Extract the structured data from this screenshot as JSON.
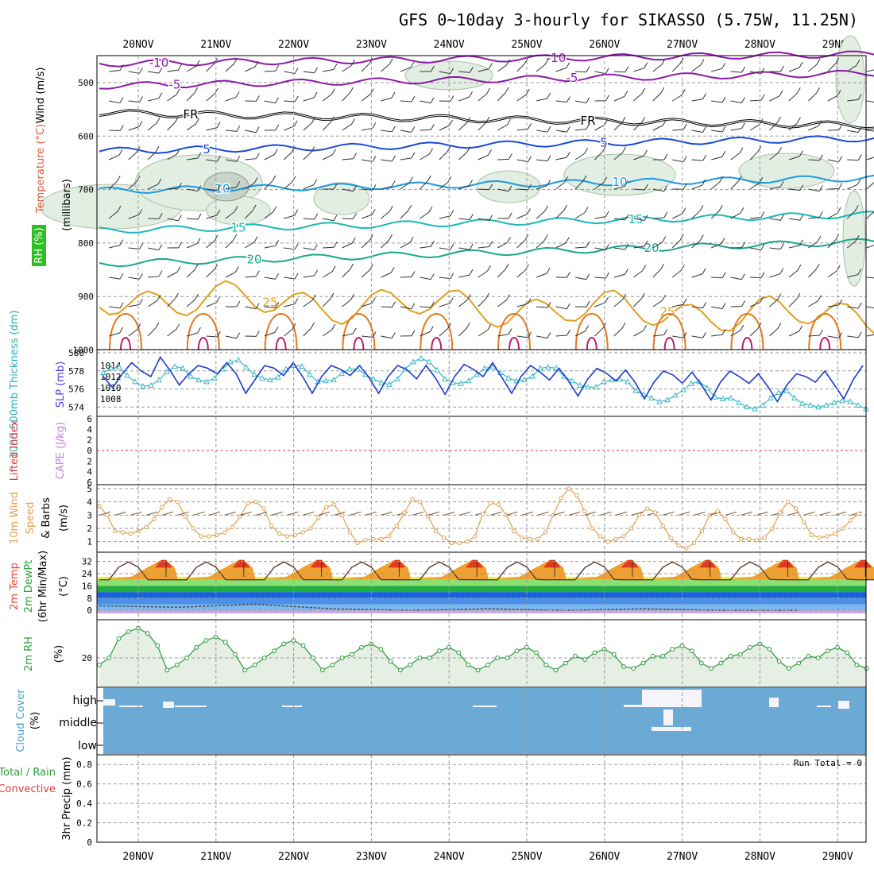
{
  "title": "GFS 0~10day 3-hourly for SIKASSO (5.75W, 11.25N)",
  "dates": [
    "20NOV",
    "21NOV",
    "22NOV",
    "23NOV",
    "24NOV",
    "25NOV",
    "26NOV",
    "27NOV",
    "28NOV",
    "29NOV"
  ],
  "colors": {
    "background": "#ffffff",
    "grid": "#9a9a9a",
    "rh_fill": "#e6efe4",
    "cloud_blue": "#6aaad4",
    "thick_line": "#3ab8c4",
    "slp_line": "#1e3cc8",
    "wind_line": "#e0a050",
    "rh_line": "#2a9a3a"
  },
  "panels": {
    "upper": {
      "labels": [
        {
          "text": "Wind (m/s)",
          "color": "#000000"
        },
        {
          "text": "Temperature (°C)",
          "color": "#e05a3a"
        },
        {
          "text": "(millibars)",
          "color": "#000000"
        },
        {
          "text": "RH (%)",
          "color": "#1a9a2a"
        }
      ],
      "pressure_ticks": [
        "500",
        "600",
        "700",
        "800",
        "900",
        "1000"
      ],
      "contours": [
        {
          "label": "-10",
          "color": "#8a1aa8",
          "isotherm": -10
        },
        {
          "label": "-5",
          "color": "#8a1aa8",
          "isotherm": -5
        },
        {
          "label": "FR",
          "color": "#000000",
          "isotherm": 0
        },
        {
          "label": "5",
          "color": "#1a4ad8",
          "isotherm": 5
        },
        {
          "label": "10",
          "color": "#1a9ae0",
          "isotherm": 10
        },
        {
          "label": "15",
          "color": "#1ab8b8",
          "isotherm": 15
        },
        {
          "label": "20",
          "color": "#1aa88a",
          "isotherm": 20
        },
        {
          "label": "25",
          "color": "#e0a020",
          "isotherm": 25
        }
      ],
      "rh_contours": [
        "10",
        "30"
      ]
    },
    "thickness": {
      "label_thickness": "1000-500mb Thickness (dm)",
      "label_slp": "SLP (mb)",
      "left_ticks": [
        "580",
        "578",
        "576",
        "574"
      ],
      "right_ticks": [
        "1014",
        "1012",
        "1010",
        "1008"
      ]
    },
    "cape": {
      "label_li": "Lifted Index",
      "label_cape": "CAPE (J/kg)",
      "ticks": [
        "6",
        "4",
        "2",
        "0",
        "2",
        "4",
        "6"
      ]
    },
    "wind10": {
      "label_a": "10m Wind",
      "label_b": "Speed",
      "label_c": "(m/s)",
      "label_d": "& Barbs",
      "ticks": [
        "1",
        "2",
        "3",
        "4",
        "5"
      ]
    },
    "temp2m": {
      "label_a": "2m Temp",
      "label_b": "2m DewPt",
      "label_c": "(6hr Min/Max)",
      "label_d": "(°C)",
      "ticks": [
        "0",
        "8",
        "16",
        "24",
        "32"
      ]
    },
    "rh2m": {
      "label_a": "2m RH",
      "label_b": "(%)",
      "ticks": [
        "20"
      ]
    },
    "cloud": {
      "label_a": "Cloud Cover",
      "label_b": "(%)",
      "levels": [
        "high",
        "middle",
        "low"
      ]
    },
    "precip": {
      "label_a": "Total / Rain",
      "label_b": "Convective",
      "label_c": "3hr Precip (mm)",
      "ticks": [
        "0",
        "0.2",
        "0.4",
        "0.6",
        "0.8"
      ],
      "run_total": "Run Total = 0"
    }
  },
  "chart_data": [
    {
      "type": "line",
      "title": "1000-500mb Thickness (dm) / SLP (mb)",
      "x_unit": "3-hourly steps from 19NOV 12Z",
      "series": [
        {
          "name": "SLP (mb)",
          "axis": "right",
          "ylim": [
            1006,
            1016
          ],
          "values": [
            1012.0,
            1010.0,
            1012.5,
            1014.5,
            1013.0,
            1012.0,
            1015.5,
            1013.2,
            1010.5,
            1012.5,
            1014.0,
            1013.5,
            1012.5,
            1014.5,
            1012.5,
            1009.0,
            1011.5,
            1014.0,
            1013.5,
            1012.2,
            1014.5,
            1012.0,
            1009.0,
            1012.0,
            1014.0,
            1013.3,
            1012.2,
            1014.0,
            1011.8,
            1009.0,
            1012.0,
            1014.0,
            1013.2,
            1011.6,
            1014.0,
            1011.7,
            1008.8,
            1012.0,
            1014.2,
            1013.3,
            1012.0,
            1014.5,
            1011.8,
            1009.0,
            1012.0,
            1014.0,
            1012.8,
            1011.4,
            1013.5,
            1011.2,
            1008.5,
            1011.5,
            1013.5,
            1012.6,
            1011.2,
            1013.2,
            1011.0,
            1008.0,
            1011.0,
            1013.0,
            1012.3,
            1010.8,
            1012.8,
            1010.5,
            1007.8,
            1011.0,
            1013.0,
            1012.0,
            1010.8,
            1012.5,
            1010.2,
            1007.5,
            1010.5,
            1012.5,
            1012.0,
            1011.0,
            1013.0,
            1010.5,
            1008.0,
            1011.5,
            1014.0
          ]
        },
        {
          "name": "1000-500mb Thickness (dm)",
          "axis": "left",
          "ylim": [
            573.5,
            580
          ],
          "values": [
            577.8,
            578.3,
            578.4,
            577.5,
            576.8,
            576.3,
            576.4,
            577.0,
            577.9,
            578.5,
            578.3,
            577.4,
            577.0,
            576.8,
            577.2,
            578.2,
            579.0,
            579.2,
            578.4,
            577.6,
            577.2,
            577.0,
            577.3,
            578.2,
            578.6,
            578.5,
            577.6,
            576.8,
            576.9,
            577.0,
            577.7,
            578.2,
            578.2,
            577.6,
            577.1,
            576.7,
            576.5,
            577.1,
            578.2,
            579.0,
            579.4,
            579.0,
            578.1,
            577.1,
            576.7,
            576.6,
            576.9,
            577.6,
            578.3,
            578.4,
            577.8,
            577.2,
            576.9,
            577.0,
            577.4,
            578.3,
            578.4,
            578.3,
            577.4,
            576.9,
            576.4,
            576.2,
            576.2,
            576.8,
            577.0,
            577.1,
            576.8,
            575.8,
            575.4,
            575.0,
            574.6,
            574.8,
            575.3,
            575.9,
            576.6,
            576.8,
            576.1,
            575.1,
            574.9,
            575.0,
            574.5,
            574.0,
            573.8,
            574.2,
            575.0,
            575.6,
            575.8,
            575.0,
            574.4,
            574.2,
            574.0,
            574.2,
            574.5,
            574.7,
            574.6,
            574.2,
            573.8
          ]
        }
      ]
    },
    {
      "type": "line",
      "title": "10m Wind Speed (m/s)",
      "ylim": [
        0.2,
        5.3
      ],
      "values": [
        3.7,
        3.0,
        1.8,
        1.7,
        1.6,
        1.8,
        2.1,
        2.7,
        3.6,
        4.2,
        4.0,
        2.9,
        2.0,
        1.4,
        1.4,
        1.5,
        1.7,
        2.1,
        2.9,
        3.9,
        4.0,
        3.5,
        2.2,
        1.6,
        1.4,
        1.5,
        1.7,
        2.0,
        2.8,
        3.6,
        3.8,
        3.0,
        1.7,
        0.9,
        1.1,
        1.2,
        1.2,
        1.4,
        2.2,
        3.2,
        4.2,
        4.0,
        2.9,
        1.8,
        1.3,
        0.9,
        0.9,
        1.0,
        1.4,
        3.1,
        3.9,
        3.8,
        3.0,
        1.8,
        1.3,
        1.2,
        1.2,
        1.7,
        3.0,
        4.3,
        5.0,
        4.5,
        3.3,
        2.0,
        1.4,
        1.0,
        1.2,
        1.4,
        2.0,
        3.0,
        3.5,
        3.2,
        2.2,
        1.3,
        0.7,
        0.5,
        0.9,
        1.8,
        3.0,
        3.3,
        2.7,
        1.7,
        1.2,
        1.2,
        1.1,
        1.3,
        2.0,
        3.2,
        4.0,
        3.5,
        2.5,
        1.5,
        1.3,
        1.4,
        1.6,
        2.0,
        2.6,
        3.1
      ]
    },
    {
      "type": "area",
      "title": "2m Temp (°C) daily cycle",
      "ylim": [
        -2,
        36
      ],
      "max_daily": [
        33,
        33,
        33,
        33,
        33,
        33,
        33,
        33,
        33,
        33
      ],
      "min_daily": [
        20,
        20,
        20,
        20,
        20,
        20,
        20,
        20,
        20,
        20
      ],
      "dewpoint_approx": [
        3,
        2,
        4,
        1,
        0,
        1,
        0,
        1,
        0,
        0
      ]
    },
    {
      "type": "area",
      "title": "2m RH (%)",
      "ylim": [
        5,
        40
      ],
      "daily_max": [
        37,
        32,
        30,
        28,
        26,
        26,
        25,
        27,
        28,
        26
      ],
      "daily_min": [
        12,
        12,
        12,
        12,
        12,
        12,
        13,
        13,
        13,
        13
      ]
    },
    {
      "type": "bar",
      "title": "3hr Precip (mm)",
      "ylim": [
        0,
        0.9
      ],
      "values_total": [
        0,
        0,
        0,
        0,
        0,
        0,
        0,
        0,
        0,
        0
      ],
      "values_convective": [
        0,
        0,
        0,
        0,
        0,
        0,
        0,
        0,
        0,
        0
      ]
    }
  ]
}
